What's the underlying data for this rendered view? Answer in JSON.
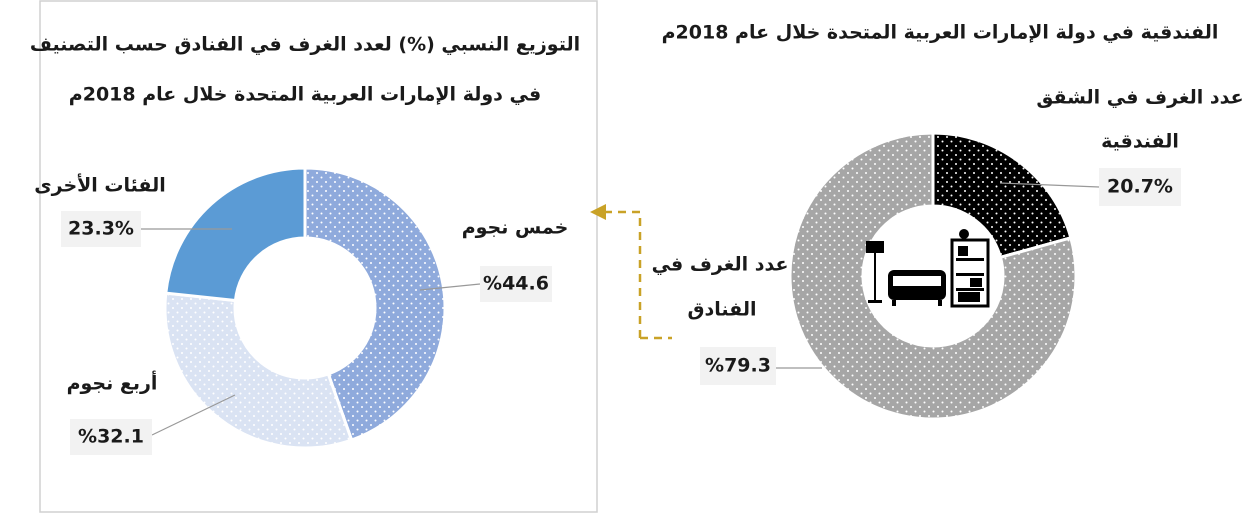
{
  "chart_data": [
    {
      "type": "donut",
      "title": [
        "التوزيع النسبي (%) لعدد الغرف في الفنادق حسب التصنيف",
        "في دولة الإمارات العربية المتحدة خلال عام 2018م"
      ],
      "categories": [
        [
          "خمس نجوم"
        ],
        [
          "أربع نجوم"
        ],
        [
          "الفئات الأخرى"
        ]
      ],
      "values": [
        44.6,
        32.1,
        23.3
      ],
      "value_labels": [
        "%44.6",
        "%32.1",
        "23.3%"
      ],
      "colors": [
        "#8faadc",
        "#dae3f3",
        "#5b9bd5"
      ],
      "dotted": [
        true,
        true,
        false
      ]
    },
    {
      "type": "donut",
      "title": [
        "الفندقية في دولة الإمارات العربية المتحدة خلال عام 2018م"
      ],
      "categories": [
        [
          "عدد الغرف في الشقق",
          "الفندقية"
        ],
        [
          "عدد الغرف في",
          "الفنادق"
        ]
      ],
      "values": [
        20.7,
        79.3
      ],
      "value_labels": [
        "20.7%",
        "%79.3"
      ],
      "colors": [
        "#000000",
        "#a6a6a6"
      ],
      "dotted": [
        true,
        true
      ]
    }
  ]
}
